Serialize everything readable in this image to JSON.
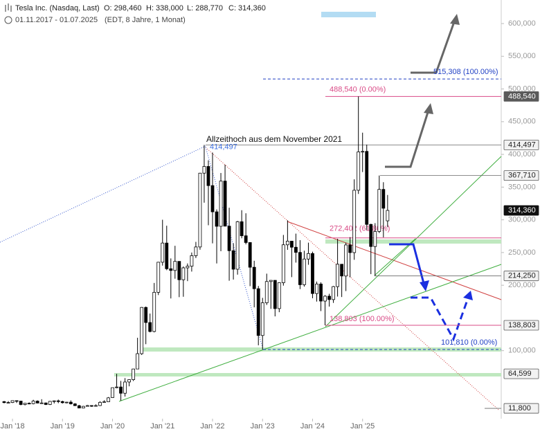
{
  "header": {
    "title": "Tesla Inc. (Nasdaq, Last)",
    "open": "O: 298,460",
    "high": "H: 338,000",
    "low": "L: 288,770",
    "close": "C: 314,360",
    "range": "01.11.2017 - 01.07.2025",
    "info": "(EDT, 8 Jahre, 1 Monat)"
  },
  "chart_data": {
    "type": "candlestick",
    "x": [
      "2017-11",
      "2017-12",
      "2018-01",
      "2018-02",
      "2018-03",
      "2018-04",
      "2018-05",
      "2018-06",
      "2018-07",
      "2018-08",
      "2018-09",
      "2018-10",
      "2018-11",
      "2018-12",
      "2019-01",
      "2019-02",
      "2019-03",
      "2019-04",
      "2019-05",
      "2019-06",
      "2019-07",
      "2019-08",
      "2019-09",
      "2019-10",
      "2019-11",
      "2019-12",
      "2020-01",
      "2020-02",
      "2020-03",
      "2020-04",
      "2020-05",
      "2020-06",
      "2020-07",
      "2020-08",
      "2020-09",
      "2020-10",
      "2020-11",
      "2020-12",
      "2021-01",
      "2021-02",
      "2021-03",
      "2021-04",
      "2021-05",
      "2021-06",
      "2021-07",
      "2021-08",
      "2021-09",
      "2021-10",
      "2021-11",
      "2021-12",
      "2022-01",
      "2022-02",
      "2022-03",
      "2022-04",
      "2022-05",
      "2022-06",
      "2022-07",
      "2022-08",
      "2022-09",
      "2022-10",
      "2022-11",
      "2022-12",
      "2023-01",
      "2023-02",
      "2023-03",
      "2023-04",
      "2023-05",
      "2023-06",
      "2023-07",
      "2023-08",
      "2023-09",
      "2023-10",
      "2023-11",
      "2023-12",
      "2024-01",
      "2024-02",
      "2024-03",
      "2024-04",
      "2024-05",
      "2024-06",
      "2024-07",
      "2024-08",
      "2024-09",
      "2024-10",
      "2024-11",
      "2024-12",
      "2025-01",
      "2025-02",
      "2025-03",
      "2025-04",
      "2025-05",
      "2025-06",
      "2025-07"
    ],
    "open": [
      22100,
      20600,
      20800,
      23600,
      22900,
      17700,
      19600,
      19000,
      22900,
      19900,
      20100,
      17700,
      22500,
      23300,
      22200,
      20500,
      21300,
      18700,
      15900,
      12300,
      14900,
      16100,
      15000,
      16100,
      21000,
      21900,
      28300,
      43400,
      44500,
      34900,
      52100,
      55700,
      72000,
      95400,
      166100,
      143000,
      129300,
      189200,
      235200,
      264500,
      225200,
      222600,
      236500,
      208400,
      226600,
      229100,
      245200,
      258500,
      371300,
      381600,
      352300,
      312200,
      290100,
      359200,
      290300,
      252800,
      224500,
      297100,
      275600,
      265300,
      227500,
      194700,
      123200,
      173200,
      205700,
      207500,
      164300,
      203900,
      261800,
      267400,
      258100,
      250200,
      200800,
      240100,
      248500,
      187300,
      201900,
      175800,
      183300,
      178100,
      197900,
      232100,
      214100,
      261600,
      249900,
      345200,
      403800,
      404600,
      293000,
      259200,
      282200,
      346500,
      298460
    ],
    "high": [
      23100,
      22900,
      24000,
      23900,
      23200,
      20000,
      20900,
      24900,
      24000,
      25800,
      20700,
      23100,
      23900,
      25200,
      23500,
      21800,
      24000,
      19700,
      17100,
      15600,
      17000,
      16400,
      17900,
      22700,
      24200,
      29000,
      43500,
      64600,
      53800,
      58100,
      56300,
      72300,
      119700,
      166700,
      167500,
      156700,
      203500,
      235700,
      300100,
      291000,
      241000,
      260300,
      236500,
      228700,
      233300,
      250000,
      266300,
      371700,
      414497,
      390900,
      402700,
      315900,
      371600,
      384300,
      318500,
      264200,
      298300,
      314700,
      310000,
      265500,
      237400,
      198900,
      180700,
      217700,
      207800,
      207800,
      204500,
      276900,
      299300,
      267500,
      278900,
      268900,
      252800,
      265100,
      251300,
      205600,
      204500,
      184800,
      186900,
      198900,
      271000,
      232500,
      264900,
      273500,
      361900,
      488540,
      433200,
      415000,
      294000,
      294900,
      367710,
      357500,
      338000
    ],
    "low": [
      19500,
      19400,
      19900,
      20000,
      16500,
      16300,
      18100,
      18000,
      19300,
      19500,
      16900,
      16900,
      19300,
      19700,
      19100,
      19500,
      17700,
      15800,
      12400,
      11800,
      14800,
      14200,
      14600,
      15400,
      20900,
      21900,
      28000,
      42500,
      23400,
      29800,
      45500,
      53600,
      72000,
      93500,
      109900,
      128000,
      128000,
      185000,
      230000,
      223000,
      179800,
      210000,
      181800,
      182400,
      206300,
      220900,
      241600,
      254300,
      326200,
      291700,
      264000,
      233300,
      252000,
      290000,
      206900,
      208700,
      216200,
      271800,
      262500,
      198600,
      166200,
      108200,
      101810,
      169900,
      163900,
      152400,
      158800,
      199400,
      254100,
      212400,
      234600,
      194100,
      197900,
      231300,
      180100,
      175000,
      160500,
      138803,
      167400,
      173000,
      182700,
      182000,
      191100,
      212100,
      238900,
      339500,
      373000,
      284200,
      217000,
      214250,
      279800,
      273200,
      288770
    ],
    "close": [
      20600,
      20800,
      23600,
      22900,
      17700,
      19600,
      19000,
      22900,
      19900,
      20100,
      17700,
      22500,
      23300,
      22200,
      20500,
      21300,
      18700,
      15900,
      12300,
      14900,
      16100,
      15000,
      16100,
      21000,
      21900,
      27900,
      43400,
      44500,
      34900,
      52100,
      55700,
      72000,
      95400,
      166100,
      143000,
      129300,
      189200,
      235200,
      264500,
      225200,
      222600,
      236500,
      208400,
      226600,
      229100,
      245200,
      258500,
      371300,
      381600,
      352300,
      312200,
      290100,
      359200,
      290300,
      252800,
      224500,
      297100,
      275600,
      265300,
      227500,
      194700,
      123200,
      173200,
      205700,
      207500,
      164300,
      203900,
      261800,
      267400,
      258100,
      250200,
      200800,
      240100,
      248500,
      187300,
      201900,
      175800,
      183300,
      178100,
      197900,
      232100,
      214100,
      261600,
      249900,
      345200,
      403800,
      404600,
      293000,
      259200,
      282200,
      346500,
      317700,
      314360
    ],
    "up_color": "#ffffff",
    "down_color": "#000000",
    "ylim": [
      -4000,
      636000
    ],
    "yticks": [
      {
        "value": 100000,
        "label": "100,000"
      },
      {
        "value": 200000,
        "label": "200,000"
      },
      {
        "value": 250000,
        "label": "250,000"
      },
      {
        "value": 300000,
        "label": "300,000"
      },
      {
        "value": 350000,
        "label": "350,000"
      },
      {
        "value": 400000,
        "label": "400,000"
      },
      {
        "value": 450000,
        "label": "450,000"
      },
      {
        "value": 500000,
        "label": "500,000"
      },
      {
        "value": 550000,
        "label": "550,000"
      },
      {
        "value": 600000,
        "label": "600,000"
      }
    ],
    "xticks": [
      {
        "value": "2018-01",
        "label": "Jan '18"
      },
      {
        "value": "2019-01",
        "label": "Jan '19"
      },
      {
        "value": "2020-01",
        "label": "Jan '20"
      },
      {
        "value": "2021-01",
        "label": "Jan '21"
      },
      {
        "value": "2022-01",
        "label": "Jan '22"
      },
      {
        "value": "2023-01",
        "label": "Jan '23"
      },
      {
        "value": "2024-01",
        "label": "Jan '24"
      },
      {
        "value": "2025-01",
        "label": "Jan '25"
      }
    ],
    "price_markers": [
      {
        "value": 488540,
        "label": "488,540",
        "color": "#5a5a5a"
      },
      {
        "value": 414497,
        "label": "414,497",
        "color": "#f2f2f2"
      },
      {
        "value": 367710,
        "label": "367,710",
        "color": "#f2f2f2"
      },
      {
        "value": 314360,
        "label": "314,360",
        "color": "#111111"
      },
      {
        "value": 214250,
        "label": "214,250",
        "color": "#f2f2f2"
      },
      {
        "value": 138803,
        "label": "138,803",
        "color": "#f2f2f2"
      },
      {
        "value": 64599,
        "label": "64,599",
        "color": "#f2f2f2"
      },
      {
        "value": 11800,
        "label": "11,800",
        "color": "#f2f2f2"
      }
    ],
    "fib_levels": [
      {
        "value": 488540,
        "label": "488,540 (0.00%)",
        "color": "#d94a86"
      },
      {
        "value": 272402,
        "label": "272,402 (61.80%)",
        "color": "#d94a86"
      },
      {
        "value": 138803,
        "label": "138,803 (100.00%)",
        "color": "#d94a86"
      },
      {
        "value": 515308,
        "label": "515,308 (100.00%)",
        "color": "#1f3fc4"
      },
      {
        "value": 101810,
        "label": "101,810 (0.00%)",
        "color": "#1f3fc4"
      },
      {
        "value": 414497,
        "label": "414,497",
        "color": "#3d6fe0"
      }
    ],
    "annotation": "Allzeithoch aus dem November 2021"
  }
}
